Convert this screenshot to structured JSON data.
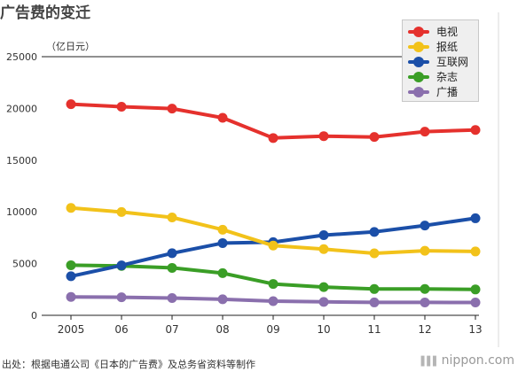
{
  "title": "广告费的变迁",
  "unit_label": "（亿日元）",
  "source": "出处：根据电通公司《日本的广告费》及总务省资料等制作",
  "brand": "nippon.com",
  "chart_data": {
    "type": "line",
    "title": "广告费的变迁",
    "ylabel": "（亿日元）",
    "xlabel": "",
    "categories": [
      "2005",
      "06",
      "07",
      "08",
      "09",
      "10",
      "11",
      "12",
      "13"
    ],
    "ylim": [
      0,
      25000
    ],
    "yticks": [
      0,
      5000,
      10000,
      15000,
      20000,
      25000
    ],
    "grid": false,
    "legend_position": "top-right",
    "series": [
      {
        "name": "电视",
        "color": "#e5312d",
        "values": [
          20411,
          20161,
          19981,
          19092,
          17139,
          17321,
          17237,
          17757,
          17913
        ]
      },
      {
        "name": "报纸",
        "color": "#f2c21a",
        "values": [
          10377,
          9986,
          9462,
          8276,
          6739,
          6396,
          5990,
          6242,
          6170
        ]
      },
      {
        "name": "互联网",
        "color": "#1b4fa8",
        "values": [
          3777,
          4826,
          6003,
          6983,
          7069,
          7747,
          8062,
          8680,
          9381
        ]
      },
      {
        "name": "杂志",
        "color": "#3a9e26",
        "values": [
          4842,
          4777,
          4585,
          4078,
          3034,
          2733,
          2542,
          2551,
          2499
        ]
      },
      {
        "name": "广播",
        "color": "#8a6fad",
        "values": [
          1778,
          1744,
          1671,
          1549,
          1370,
          1299,
          1247,
          1246,
          1243
        ]
      }
    ]
  }
}
